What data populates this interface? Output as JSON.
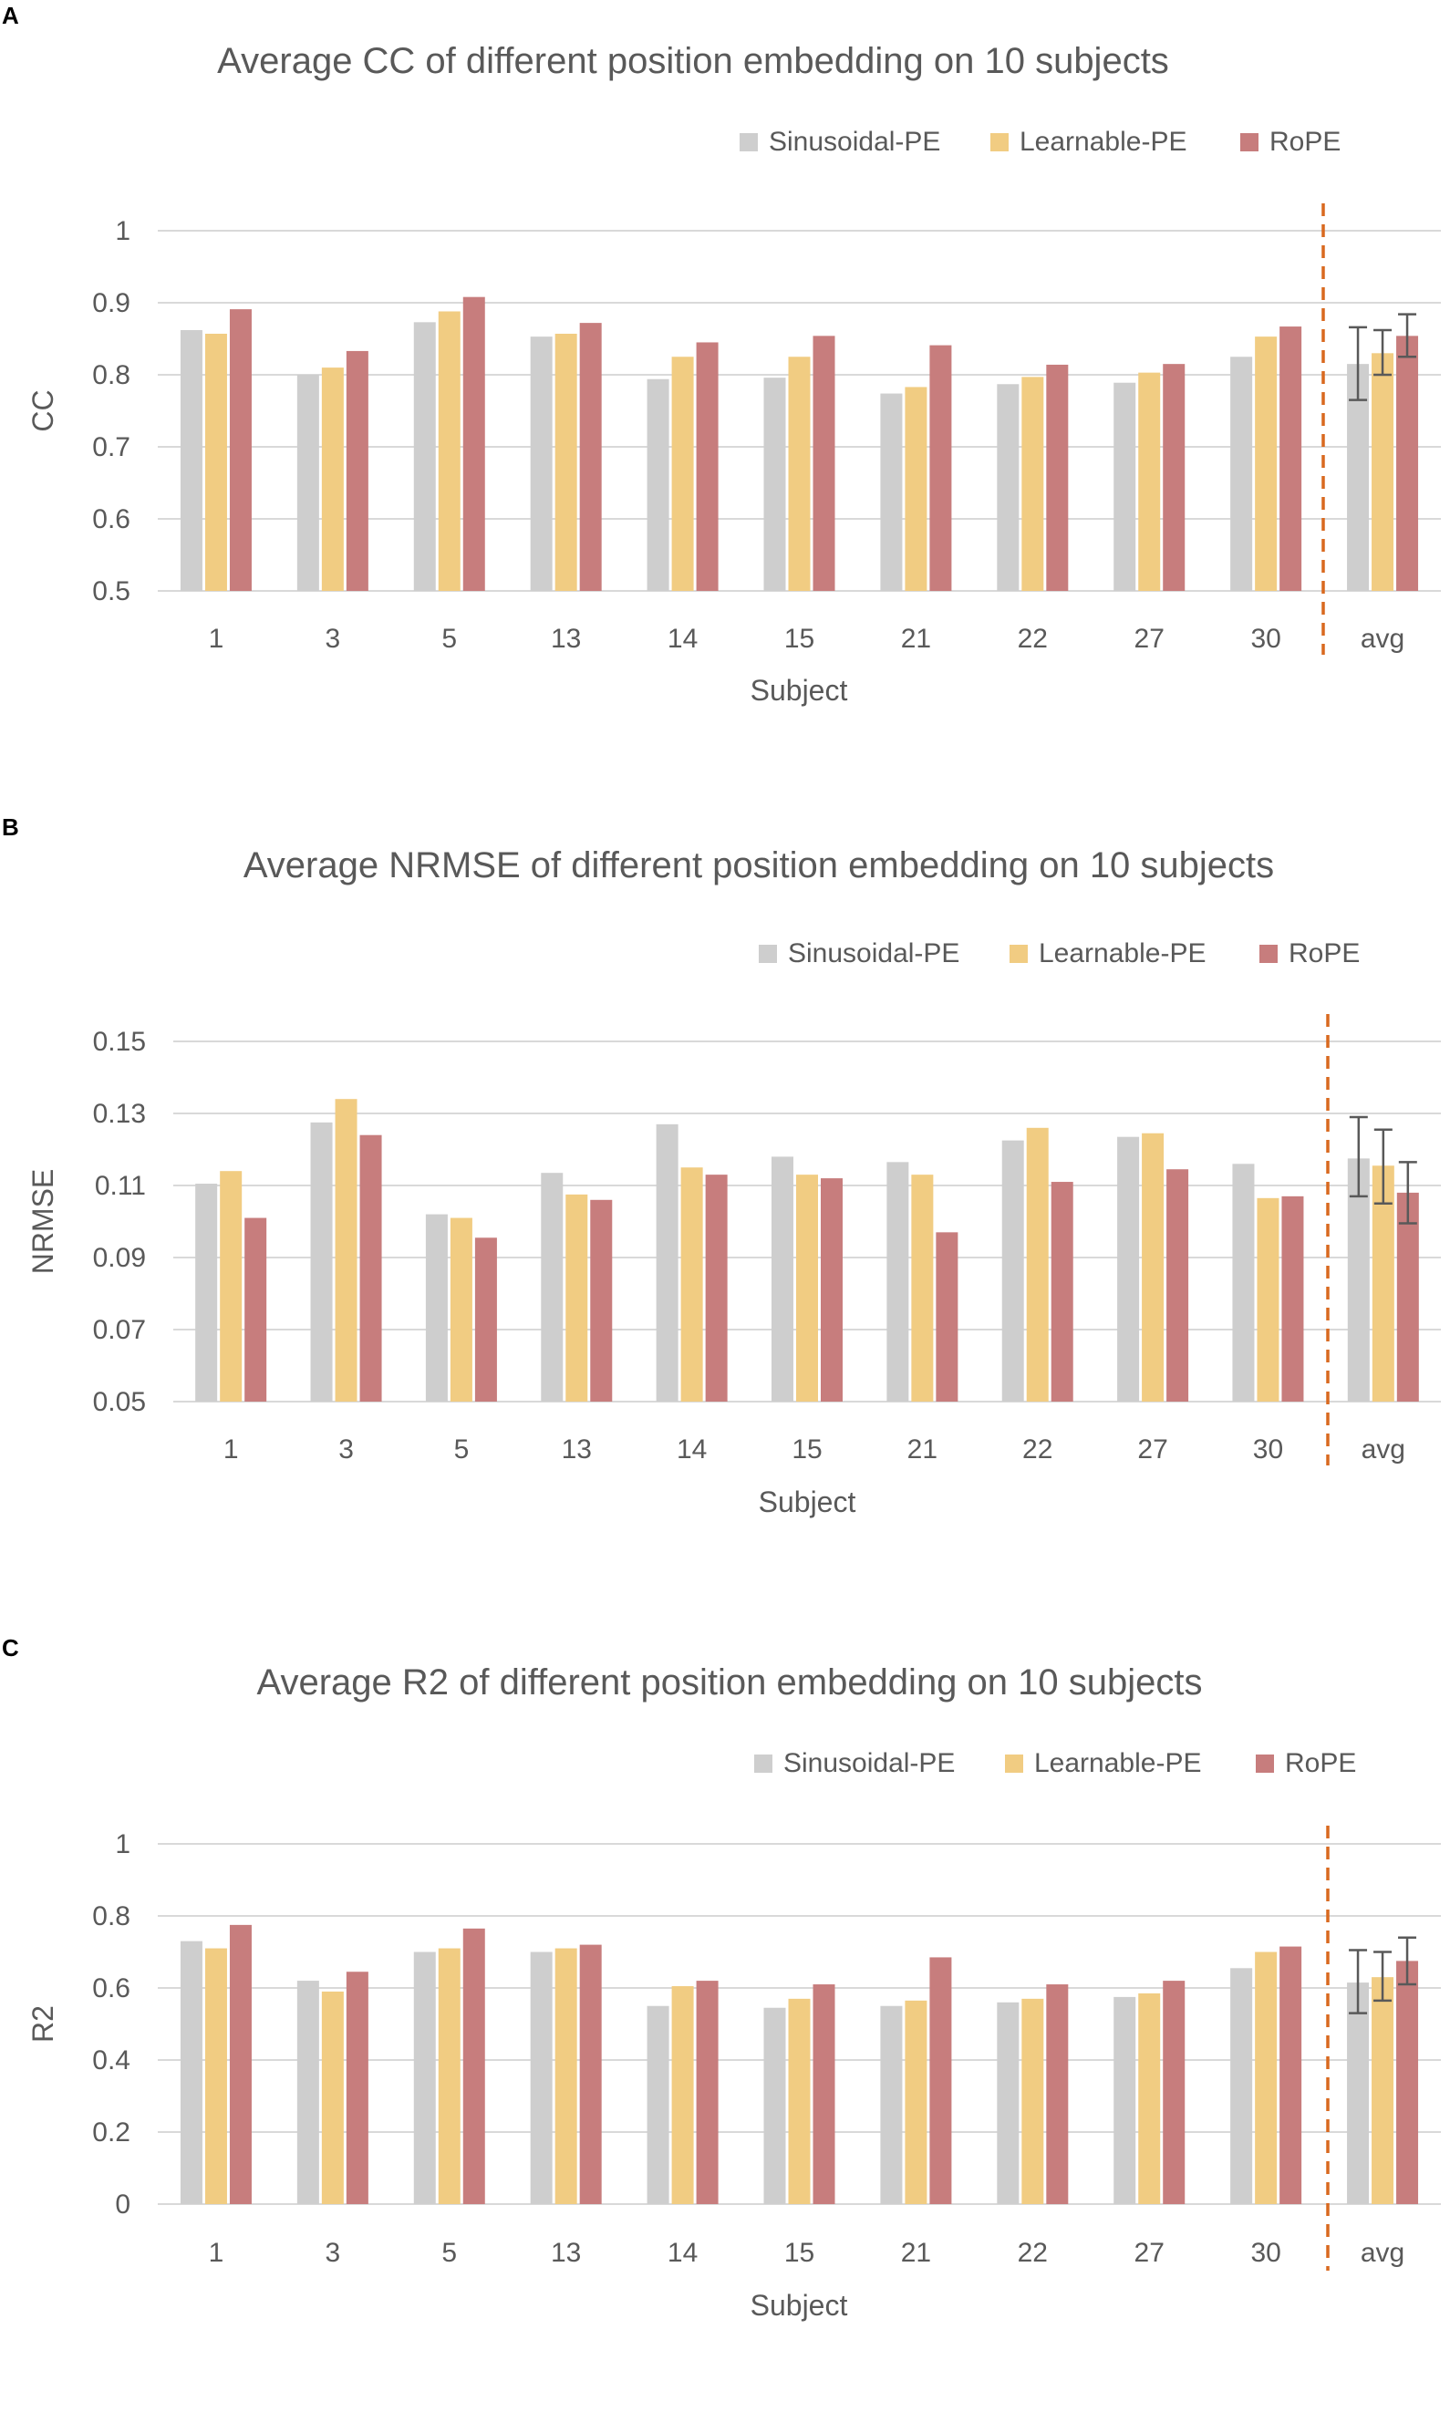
{
  "colors": {
    "sinusoidal": "#cecece",
    "learnable": "#f1cc82",
    "rope": "#c77d7d",
    "divider": "#d9691f",
    "grid": "#d9d9d9",
    "text": "#595959",
    "errorbar": "#595959"
  },
  "chart_data": [
    {
      "panel": "A",
      "type": "bar",
      "title": "Average CC of different position embedding on 10 subjects",
      "xlabel": "Subject",
      "ylabel": "CC",
      "ylim": [
        0.5,
        1
      ],
      "yticks": [
        0.5,
        0.6,
        0.7,
        0.8,
        0.9,
        1
      ],
      "ytick_labels": [
        "0.5",
        "0.6",
        "0.7",
        "0.8",
        "0.9",
        "1"
      ],
      "categories": [
        "1",
        "3",
        "5",
        "13",
        "14",
        "15",
        "21",
        "22",
        "27",
        "30",
        "avg"
      ],
      "series": [
        {
          "name": "Sinusoidal-PE",
          "color_key": "sinusoidal",
          "values": [
            0.862,
            0.8,
            0.873,
            0.853,
            0.794,
            0.796,
            0.774,
            0.787,
            0.789,
            0.825,
            0.815
          ]
        },
        {
          "name": "Learnable-PE",
          "color_key": "learnable",
          "values": [
            0.857,
            0.81,
            0.888,
            0.857,
            0.825,
            0.825,
            0.783,
            0.797,
            0.803,
            0.853,
            0.83
          ]
        },
        {
          "name": "RoPE",
          "color_key": "rope",
          "values": [
            0.891,
            0.833,
            0.908,
            0.872,
            0.845,
            0.854,
            0.841,
            0.814,
            0.815,
            0.867,
            0.854
          ]
        }
      ],
      "error_bars": [
        [
          0.765,
          0.866
        ],
        [
          0.8,
          0.862
        ],
        [
          0.825,
          0.884
        ]
      ],
      "divider": "dashed line between 30 and avg",
      "legend_position": "top-right"
    },
    {
      "panel": "B",
      "type": "bar",
      "title": "Average NRMSE of different position embedding on 10 subjects",
      "xlabel": "Subject",
      "ylabel": "NRMSE",
      "ylim": [
        0.05,
        0.15
      ],
      "yticks": [
        0.05,
        0.07,
        0.09,
        0.11,
        0.13,
        0.15
      ],
      "ytick_labels": [
        "0.05",
        "0.07",
        "0.09",
        "0.11",
        "0.13",
        "0.15"
      ],
      "categories": [
        "1",
        "3",
        "5",
        "13",
        "14",
        "15",
        "21",
        "22",
        "27",
        "30",
        "avg"
      ],
      "series": [
        {
          "name": "Sinusoidal-PE",
          "color_key": "sinusoidal",
          "values": [
            0.1105,
            0.1275,
            0.102,
            0.1135,
            0.127,
            0.118,
            0.1165,
            0.1225,
            0.1235,
            0.116,
            0.1175
          ]
        },
        {
          "name": "Learnable-PE",
          "color_key": "learnable",
          "values": [
            0.114,
            0.134,
            0.101,
            0.1075,
            0.115,
            0.113,
            0.113,
            0.126,
            0.1245,
            0.1065,
            0.1155
          ]
        },
        {
          "name": "RoPE",
          "color_key": "rope",
          "values": [
            0.101,
            0.124,
            0.0955,
            0.106,
            0.113,
            0.112,
            0.097,
            0.111,
            0.1145,
            0.107,
            0.108
          ]
        }
      ],
      "error_bars": [
        [
          0.107,
          0.129
        ],
        [
          0.105,
          0.1255
        ],
        [
          0.0995,
          0.1165
        ]
      ],
      "divider": "dashed line between 30 and avg",
      "legend_position": "top-right"
    },
    {
      "panel": "C",
      "type": "bar",
      "title": "Average R2 of different position embedding on 10 subjects",
      "xlabel": "Subject",
      "ylabel": "R2",
      "ylim": [
        0,
        1
      ],
      "yticks": [
        0,
        0.2,
        0.4,
        0.6,
        0.8,
        1
      ],
      "ytick_labels": [
        "0",
        "0.2",
        "0.4",
        "0.6",
        "0.8",
        "1"
      ],
      "categories": [
        "1",
        "3",
        "5",
        "13",
        "14",
        "15",
        "21",
        "22",
        "27",
        "30",
        "avg"
      ],
      "series": [
        {
          "name": "Sinusoidal-PE",
          "color_key": "sinusoidal",
          "values": [
            0.73,
            0.62,
            0.7,
            0.7,
            0.55,
            0.545,
            0.55,
            0.56,
            0.575,
            0.655,
            0.615
          ]
        },
        {
          "name": "Learnable-PE",
          "color_key": "learnable",
          "values": [
            0.71,
            0.59,
            0.71,
            0.71,
            0.605,
            0.57,
            0.565,
            0.57,
            0.585,
            0.7,
            0.63
          ]
        },
        {
          "name": "RoPE",
          "color_key": "rope",
          "values": [
            0.775,
            0.645,
            0.765,
            0.72,
            0.62,
            0.61,
            0.685,
            0.61,
            0.62,
            0.715,
            0.675
          ]
        }
      ],
      "error_bars": [
        [
          0.53,
          0.705
        ],
        [
          0.565,
          0.7
        ],
        [
          0.61,
          0.74
        ]
      ],
      "divider": "dashed line between 30 and avg",
      "legend_position": "top-right"
    }
  ]
}
